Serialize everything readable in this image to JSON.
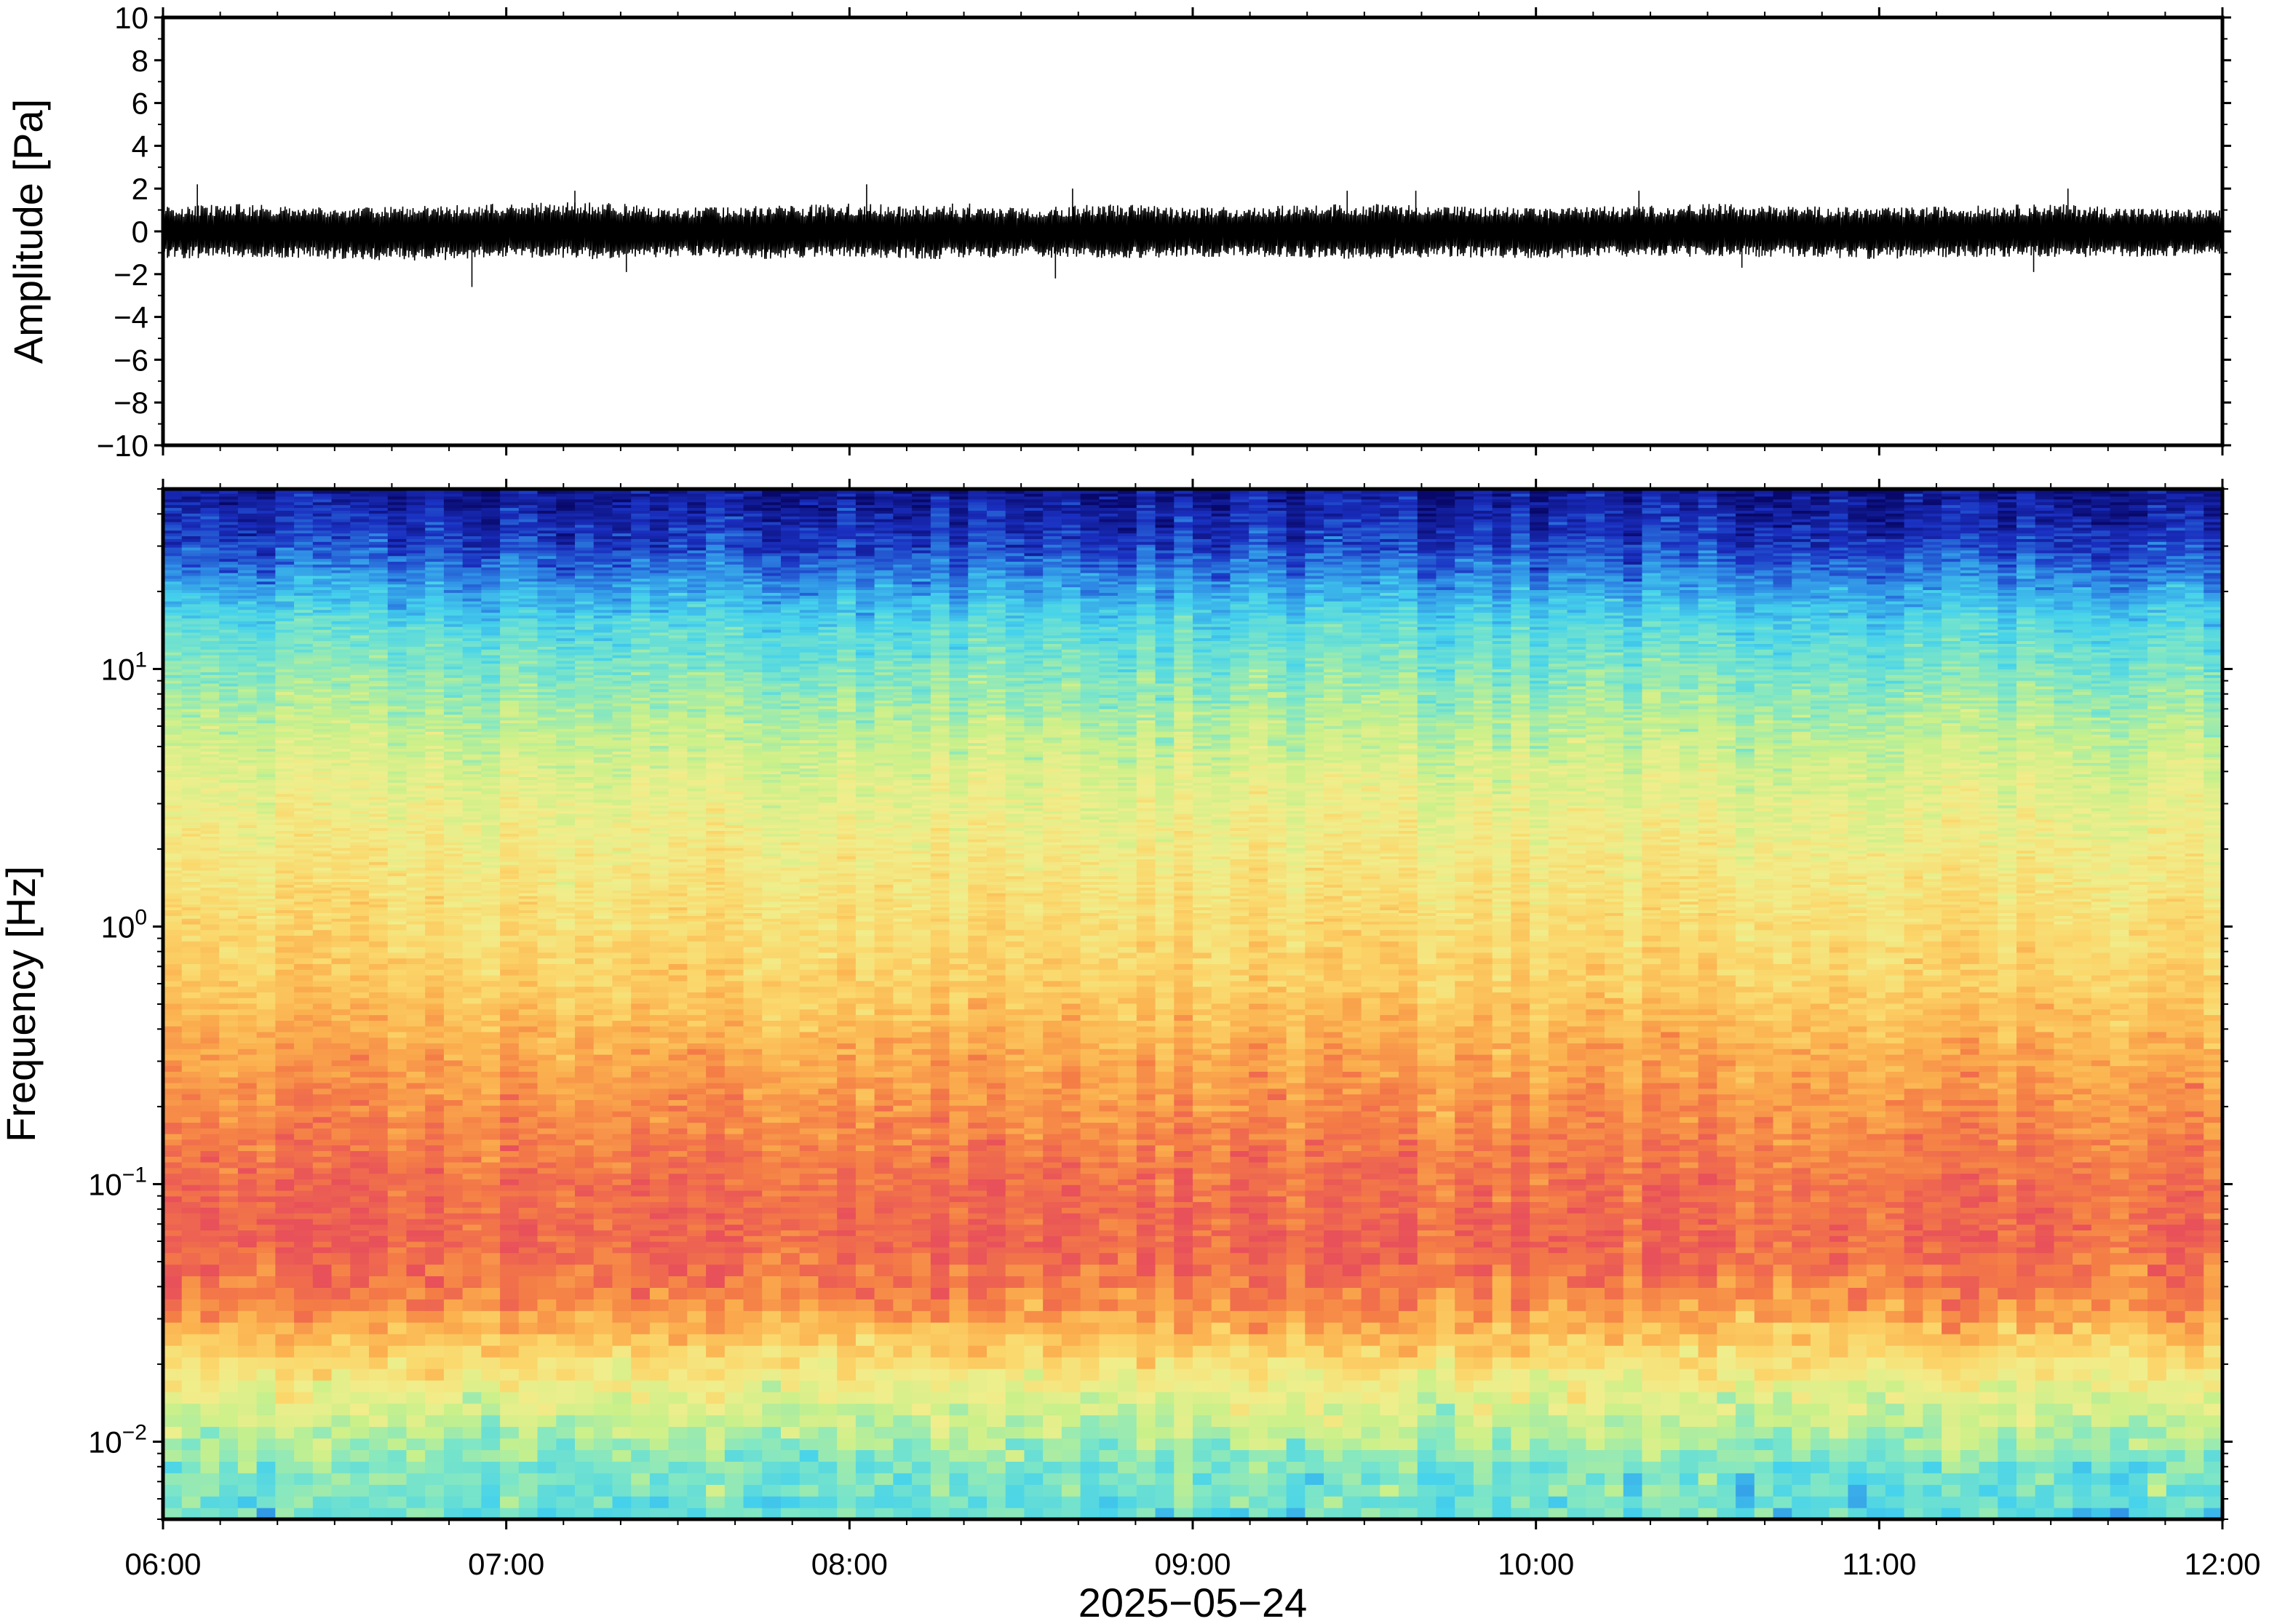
{
  "chart_data": [
    {
      "type": "line",
      "panel": "waveform",
      "ylabel": "Amplitude [Pa]",
      "ylim": [
        -10,
        10
      ],
      "yticks": [
        10,
        8,
        6,
        4,
        2,
        0,
        -2,
        -4,
        -6,
        -8,
        -10
      ],
      "ytick_labels": [
        "10",
        "8",
        "6",
        "4",
        "2",
        "0",
        "−2",
        "−4",
        "−6",
        "−8",
        "−10"
      ],
      "x_range": [
        "06:00",
        "12:00"
      ],
      "grid": false,
      "series": [
        {
          "color": "#000000",
          "envelope_time_h": [
            6.0,
            6.25,
            6.5,
            6.75,
            7.0,
            7.25,
            7.5,
            7.75,
            8.0,
            8.25,
            8.5,
            8.75,
            9.0,
            9.25,
            9.5,
            9.75,
            10.0,
            10.25,
            10.5,
            10.75,
            11.0,
            11.25,
            11.5,
            11.75,
            12.0
          ],
          "envelope_max_pa": [
            1.2,
            1.3,
            1.1,
            1.2,
            1.3,
            1.4,
            1.1,
            1.2,
            1.3,
            1.2,
            1.1,
            1.3,
            1.1,
            1.2,
            1.3,
            1.2,
            1.1,
            1.2,
            1.3,
            1.2,
            1.1,
            1.2,
            1.3,
            1.1,
            1.0
          ],
          "envelope_min_pa": [
            -1.3,
            -1.2,
            -1.3,
            -1.4,
            -1.2,
            -1.3,
            -1.2,
            -1.3,
            -1.2,
            -1.3,
            -1.2,
            -1.3,
            -1.2,
            -1.2,
            -1.3,
            -1.2,
            -1.3,
            -1.2,
            -1.2,
            -1.2,
            -1.3,
            -1.2,
            -1.2,
            -1.2,
            -1.1
          ],
          "peak_time_h": [
            6.1,
            6.9,
            7.2,
            7.35,
            8.05,
            8.3,
            8.35,
            8.6,
            8.65,
            9.45,
            9.65,
            10.3,
            10.6,
            11.45,
            11.55
          ],
          "peak_pa": [
            2.2,
            -2.6,
            1.9,
            -1.9,
            2.2,
            1.3,
            1.3,
            -2.2,
            2.0,
            1.9,
            1.9,
            1.9,
            -1.7,
            -1.9,
            2.0
          ]
        }
      ]
    },
    {
      "type": "heatmap",
      "panel": "spectrogram",
      "ylabel": "Frequency [Hz]",
      "xlabel": "2025−05−24",
      "yscale": "log",
      "ylim": [
        0.005,
        50
      ],
      "yticks": [
        0.01,
        0.1,
        1,
        10
      ],
      "ytick_labels": [
        [
          "10",
          "−2"
        ],
        [
          "10",
          "−1"
        ],
        [
          "10",
          "0"
        ],
        [
          "10",
          "1"
        ]
      ],
      "xticks": [
        "06:00",
        "07:00",
        "08:00",
        "09:00",
        "10:00",
        "11:00",
        "12:00"
      ],
      "x_hours": [
        6,
        12
      ],
      "grid": false,
      "colormap": "rainbow (dark blue = low power, red = high power)",
      "colormap_stops": [
        "#08086a",
        "#1a2fc0",
        "#2f8ee6",
        "#45d2ec",
        "#7ee6c6",
        "#c9f08a",
        "#f0ee8c",
        "#fbd66a",
        "#fbb04e",
        "#f47c46",
        "#e8505a"
      ],
      "mean_profile": {
        "freq_hz": [
          0.005,
          0.008,
          0.01,
          0.015,
          0.02,
          0.03,
          0.04,
          0.06,
          0.1,
          0.2,
          0.35,
          0.6,
          1.0,
          2.0,
          4.0,
          7.0,
          10,
          15,
          20,
          30,
          50
        ],
        "level": [
          0.36,
          0.39,
          0.46,
          0.56,
          0.66,
          0.82,
          0.9,
          0.95,
          0.93,
          0.86,
          0.8,
          0.72,
          0.68,
          0.62,
          0.55,
          0.46,
          0.4,
          0.33,
          0.24,
          0.12,
          0.04
        ]
      }
    }
  ]
}
